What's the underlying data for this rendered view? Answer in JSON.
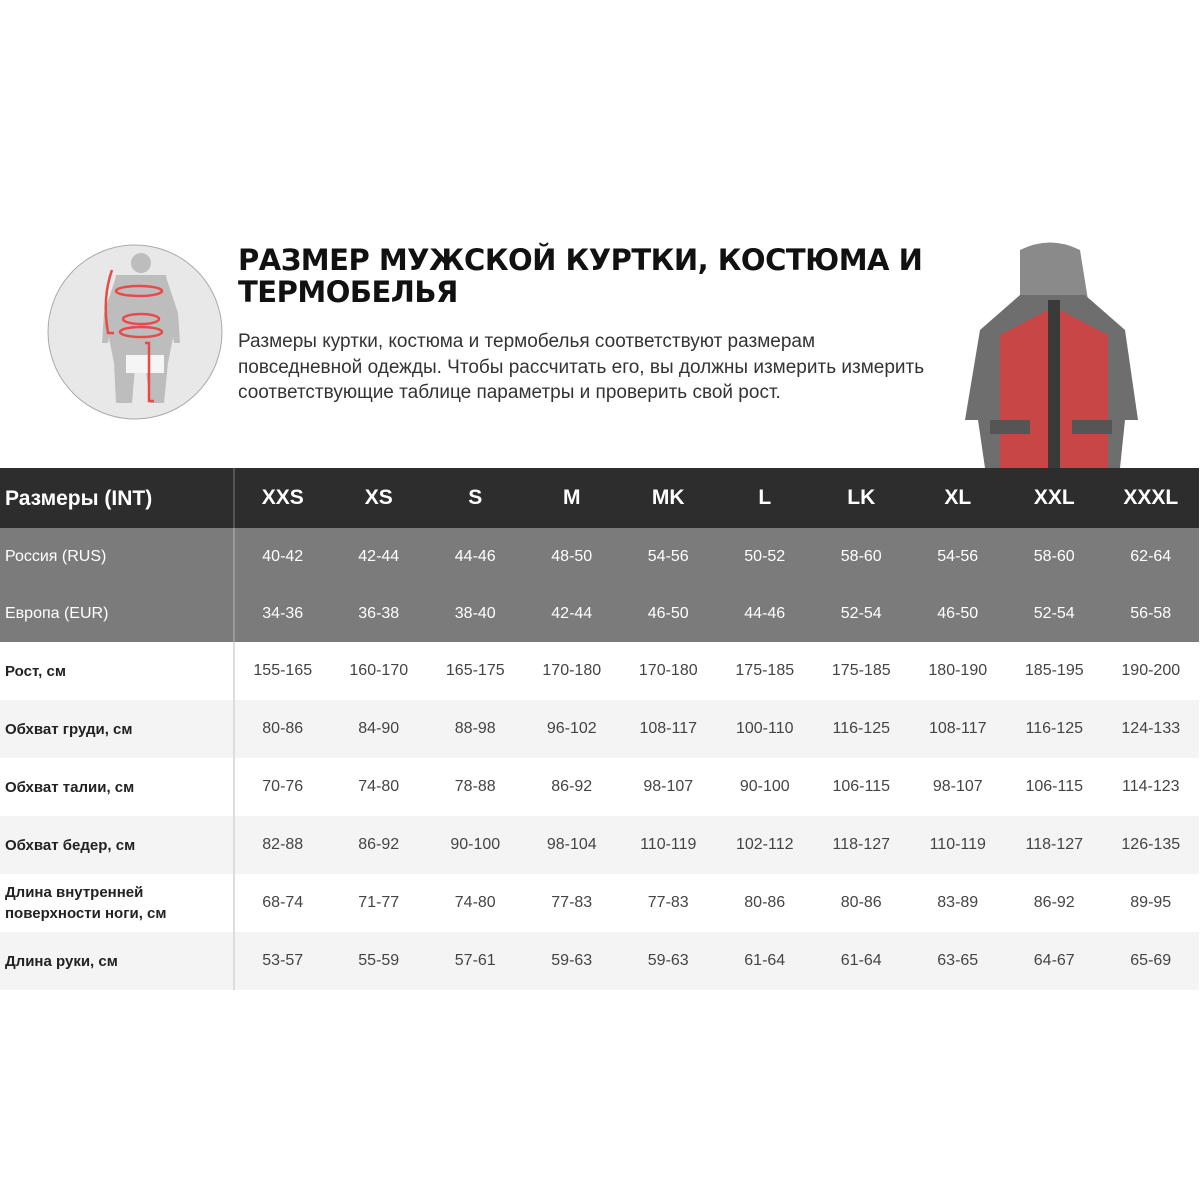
{
  "title": "РАЗМЕР МУЖСКОЙ КУРТКИ, КОСТЮМА И ТЕРМОБЕЛЬЯ",
  "description": "Размеры куртки, костюма и термобелья соответствуют размерам повседневной одежды. Чтобы рассчитать его, вы должны измерить измерить соответствующие таблице параметры и проверить свой рост.",
  "colors": {
    "header": "#2d2d2d",
    "region_rows": "#7b7b7b",
    "accent": "#e84a4a"
  },
  "table": {
    "header": {
      "label": "Размеры (INT)",
      "sizes": [
        "XXS",
        "XS",
        "S",
        "M",
        "MK",
        "L",
        "LK",
        "XL",
        "XXL",
        "XXXL"
      ]
    },
    "region_rows": [
      {
        "label": "Россия (RUS)",
        "values": [
          "40-42",
          "42-44",
          "44-46",
          "48-50",
          "54-56",
          "50-52",
          "58-60",
          "54-56",
          "58-60",
          "62-64"
        ]
      },
      {
        "label": "Европа (EUR)",
        "values": [
          "34-36",
          "36-38",
          "38-40",
          "42-44",
          "46-50",
          "44-46",
          "52-54",
          "46-50",
          "52-54",
          "56-58"
        ]
      }
    ],
    "rows": [
      {
        "label": "Рост, см",
        "values": [
          "155-165",
          "160-170",
          "165-175",
          "170-180",
          "170-180",
          "175-185",
          "175-185",
          "180-190",
          "185-195",
          "190-200"
        ]
      },
      {
        "label": "Обхват груди, см",
        "values": [
          "80-86",
          "84-90",
          "88-98",
          "96-102",
          "108-117",
          "100-110",
          "116-125",
          "108-117",
          "116-125",
          "124-133"
        ]
      },
      {
        "label": "Обхват талии, см",
        "values": [
          "70-76",
          "74-80",
          "78-88",
          "86-92",
          "98-107",
          "90-100",
          "106-115",
          "98-107",
          "106-115",
          "114-123"
        ]
      },
      {
        "label": "Обхват бедер, см",
        "values": [
          "82-88",
          "86-92",
          "90-100",
          "98-104",
          "110-119",
          "102-112",
          "118-127",
          "110-119",
          "118-127",
          "126-135"
        ]
      },
      {
        "label": "Длина внутренней поверхности ноги, см",
        "values": [
          "68-74",
          "71-77",
          "74-80",
          "77-83",
          "77-83",
          "80-86",
          "80-86",
          "83-89",
          "86-92",
          "89-95"
        ]
      },
      {
        "label": "Длина руки, см",
        "values": [
          "53-57",
          "55-59",
          "57-61",
          "59-63",
          "59-63",
          "61-64",
          "61-64",
          "63-65",
          "64-67",
          "65-69"
        ]
      }
    ]
  }
}
